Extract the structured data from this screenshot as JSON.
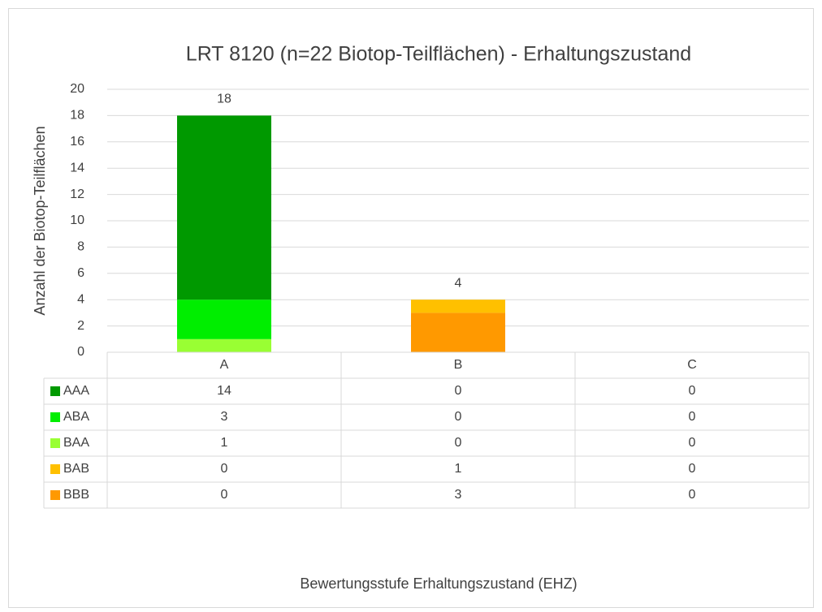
{
  "chart_data": {
    "type": "stacked_bar",
    "title": "LRT 8120 (n=22 Biotop-Teilflächen) - Erhaltungszustand",
    "y_label": "Anzahl der Biotop-Teilflächen",
    "x_label": "Bewertungsstufe Erhaltungszustand (EHZ)",
    "categories": [
      "A",
      "B",
      "C"
    ],
    "series": [
      {
        "name": "AAA",
        "color": "#009900",
        "values": [
          14,
          0,
          0
        ]
      },
      {
        "name": "ABA",
        "color": "#00ee00",
        "values": [
          3,
          0,
          0
        ]
      },
      {
        "name": "BAA",
        "color": "#99ff33",
        "values": [
          1,
          0,
          0
        ]
      },
      {
        "name": "BAB",
        "color": "#ffc000",
        "values": [
          0,
          1,
          0
        ]
      },
      {
        "name": "BBB",
        "color": "#ff9900",
        "values": [
          0,
          3,
          0
        ]
      }
    ],
    "totals": [
      18,
      4,
      null
    ],
    "ylim": [
      0,
      20
    ],
    "yticks": [
      0,
      2,
      4,
      6,
      8,
      10,
      12,
      14,
      16,
      18,
      20
    ],
    "grid": true,
    "data_table": true
  }
}
